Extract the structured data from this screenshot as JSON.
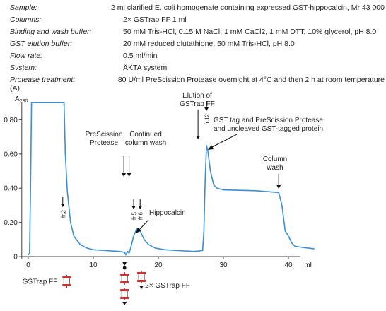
{
  "conditions": [
    {
      "label": "Sample:",
      "value": "2 ml clarified E. coli homogenate containing expressed GST-hippocalcin, Mr 43 000"
    },
    {
      "label": "Columns:",
      "value": "2× GSTrap FF 1 ml"
    },
    {
      "label": "Binding and wash buffer:",
      "value": "50 mM Tris-HCl, 0.15 M NaCl, 1 mM CaCl2, 1 mM DTT, 10% glycerol, pH 8.0"
    },
    {
      "label": "GST elution buffer:",
      "value": "20 mM reduced glutathione, 50 mM Tris-HCl, pH 8.0"
    },
    {
      "label": "Flow rate:",
      "value": "0.5 ml/min"
    },
    {
      "label": "System:",
      "value": "ÄKTA system"
    },
    {
      "label": "Protease treatment:",
      "value": "80 U/ml PreScission Protease overnight at 4°C and then 2 h at room temperature"
    }
  ],
  "panel_label": "(A)",
  "chart_data": {
    "type": "line",
    "ylabel": "A280",
    "xlabel": "ml",
    "xlim": [
      -1,
      45
    ],
    "ylim": [
      0,
      0.9
    ],
    "x_ticks": [
      0,
      10,
      20,
      30,
      40
    ],
    "y_ticks": [
      0,
      0.2,
      0.4,
      0.6,
      0.8
    ],
    "y_tick_labels": [
      "0",
      "0.20",
      "0.40",
      "0.60",
      "0.80"
    ],
    "line_color": "#3d8fd1",
    "series": [
      {
        "points": [
          [
            0,
            0.01
          ],
          [
            0.2,
            0.02
          ],
          [
            0.35,
            0.4
          ],
          [
            0.5,
            0.9
          ],
          [
            5.5,
            0.9
          ],
          [
            5.7,
            0.6
          ],
          [
            6.0,
            0.38
          ],
          [
            6.5,
            0.2
          ],
          [
            7.0,
            0.12
          ],
          [
            8.0,
            0.07
          ],
          [
            9.0,
            0.05
          ],
          [
            10.0,
            0.04
          ],
          [
            12.0,
            0.035
          ],
          [
            14.0,
            0.03
          ],
          [
            14.8,
            0.025
          ],
          [
            15.0,
            0.01
          ],
          [
            15.3,
            0.03
          ],
          [
            15.5,
            0.02
          ],
          [
            15.8,
            0.06
          ],
          [
            16.2,
            0.12
          ],
          [
            16.7,
            0.165
          ],
          [
            17.2,
            0.15
          ],
          [
            17.8,
            0.1
          ],
          [
            18.5,
            0.07
          ],
          [
            19.5,
            0.05
          ],
          [
            21.0,
            0.04
          ],
          [
            23.0,
            0.035
          ],
          [
            25.5,
            0.03
          ],
          [
            26.8,
            0.035
          ],
          [
            27.0,
            0.15
          ],
          [
            27.2,
            0.45
          ],
          [
            27.4,
            0.65
          ],
          [
            27.6,
            0.62
          ],
          [
            28.0,
            0.5
          ],
          [
            28.5,
            0.42
          ],
          [
            29.0,
            0.4
          ],
          [
            30.0,
            0.39
          ],
          [
            35.0,
            0.385
          ],
          [
            38.5,
            0.375
          ],
          [
            39.0,
            0.3
          ],
          [
            39.5,
            0.15
          ],
          [
            40.0,
            0.12
          ],
          [
            40.5,
            0.08
          ],
          [
            41.0,
            0.06
          ],
          [
            42.0,
            0.055
          ],
          [
            43.0,
            0.05
          ],
          [
            44.0,
            0.045
          ]
        ]
      }
    ],
    "fraction_markers": [
      {
        "label": "fr.2",
        "x": 5.3
      },
      {
        "label": "fr.5",
        "x": 16.2
      },
      {
        "label": "fr.6",
        "x": 17.2
      },
      {
        "label": "fr.12",
        "x": 27.4
      }
    ],
    "annotations": [
      {
        "id": "prescission",
        "lines": [
          "PreScission",
          "Protease"
        ],
        "x": 14.8
      },
      {
        "id": "continued",
        "lines": [
          "Continued",
          "column wash"
        ],
        "x": 15.5
      },
      {
        "id": "hippocalcin",
        "lines": [
          "Hippocalcin"
        ],
        "x": 17
      },
      {
        "id": "elution",
        "lines": [
          "Elution of",
          "GSTrap FF"
        ],
        "x": 27
      },
      {
        "id": "gst-tag",
        "lines": [
          "GST tag and PreScission Protease",
          "and uncleaved GST-tagged protein"
        ],
        "x": 27.4
      },
      {
        "id": "column-wash",
        "lines": [
          "Column",
          "wash"
        ],
        "x": 38.5
      }
    ],
    "column_labels": {
      "single": "GSTrap FF",
      "double": "2× GSTrap FF"
    }
  }
}
